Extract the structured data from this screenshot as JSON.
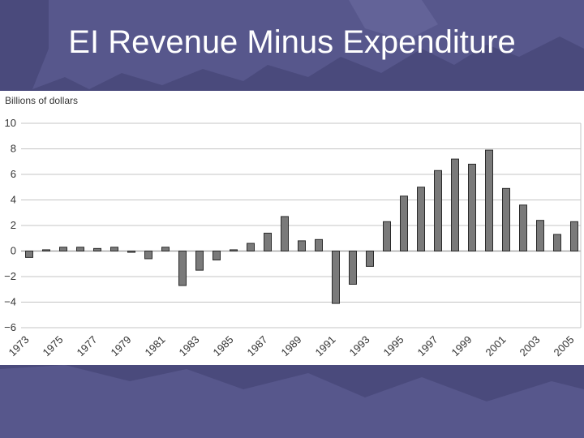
{
  "slide": {
    "title": "EI Revenue Minus Expenditure"
  },
  "colors": {
    "background": "#4a4a7c",
    "map_fill": "#5c5c92",
    "bar_fill": "#7a7a7a",
    "bar_stroke": "#2a2a2a",
    "grid": "#c4c4c4",
    "zero_line": "#999999",
    "title_text": "#ffffff"
  },
  "chart_data": {
    "type": "bar",
    "title": "",
    "xlabel": "",
    "ylabel": "Billions of dollars",
    "ylim": [
      -6,
      10
    ],
    "yticks": [
      "10",
      "8",
      "6",
      "4",
      "2",
      "0",
      "−2",
      "−4",
      "−6"
    ],
    "grid": true,
    "categories": [
      "1973",
      "1974",
      "1975",
      "1976",
      "1977",
      "1978",
      "1979",
      "1980",
      "1981",
      "1982",
      "1983",
      "1984",
      "1985",
      "1986",
      "1987",
      "1988",
      "1989",
      "1990",
      "1991",
      "1992",
      "1993",
      "1994",
      "1995",
      "1996",
      "1997",
      "1998",
      "1999",
      "2000",
      "2001",
      "2002",
      "2003",
      "2004",
      "2005"
    ],
    "x_tick_labels": [
      "1973",
      "1975",
      "1977",
      "1979",
      "1981",
      "1983",
      "1985",
      "1987",
      "1989",
      "1991",
      "1993",
      "1995",
      "1997",
      "1999",
      "2001",
      "2003",
      "2005"
    ],
    "values": [
      -0.5,
      0.1,
      0.3,
      0.3,
      0.2,
      0.3,
      -0.1,
      -0.6,
      0.3,
      -2.7,
      -1.5,
      -0.7,
      0.1,
      0.6,
      1.4,
      2.7,
      0.8,
      0.9,
      -4.1,
      -2.6,
      -1.2,
      2.3,
      4.3,
      5.0,
      6.3,
      7.2,
      6.8,
      7.9,
      4.9,
      3.6,
      2.4,
      1.3,
      2.3
    ]
  }
}
